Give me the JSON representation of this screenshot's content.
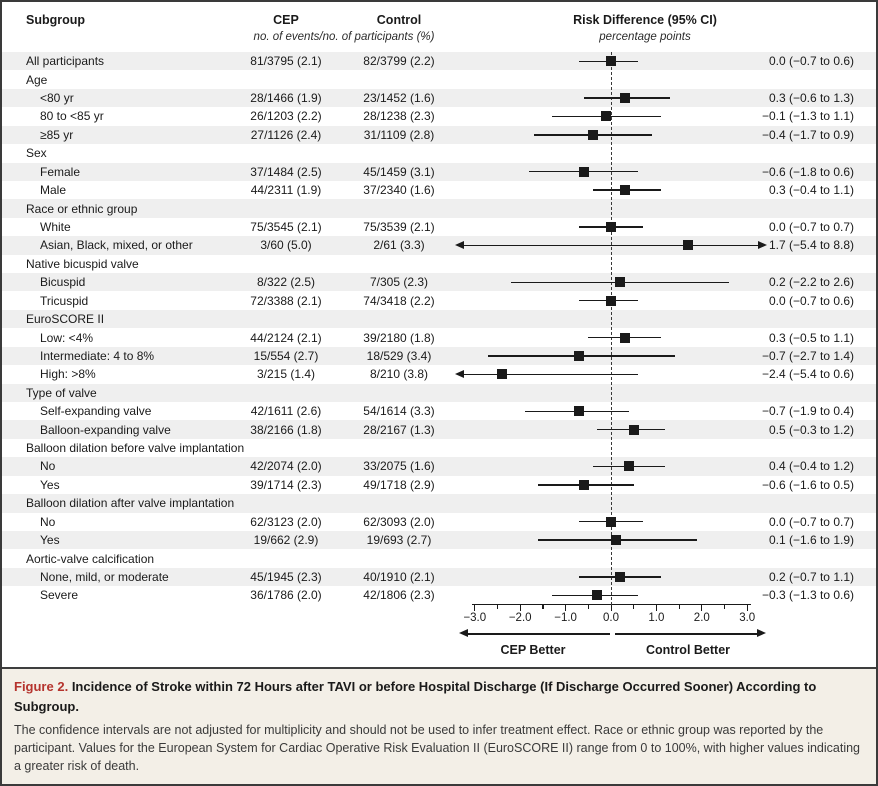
{
  "figure": {
    "columns": {
      "subgroup": "Subgroup",
      "cep": "CEP",
      "control": "Control",
      "events_note": "no. of events/no. of participants (%)",
      "risk_difference": "Risk Difference (95% CI)",
      "risk_difference_note": "percentage points"
    },
    "footer_axis": {
      "left_label": "CEP Better",
      "right_label": "Control Better"
    },
    "caption": {
      "label": "Figure 2.",
      "title": "Incidence of Stroke within 72 Hours after TAVI or before Hospital Discharge (If Discharge Occurred Sooner) According to Subgroup.",
      "body": "The confidence intervals are not adjusted for multiplicity and should not be used to infer treatment effect. Race or ethnic group was reported by the participant. Values for the European System for Cardiac Operative Risk Evaluation II (EuroSCORE II) range from 0 to 100%, with higher values indicating a greater risk of death."
    },
    "colors": {
      "figure_label_red": "#b5332d",
      "band_gray": "#efefef",
      "ink": "#1a1a1a",
      "caption_bg": "#f3efe7",
      "border": "#3e3e3e"
    }
  },
  "chart_data": {
    "type": "forest",
    "x_unit": "percentage points",
    "xlim": [
      -3.0,
      3.0
    ],
    "x_major_ticks": [
      -3.0,
      -2.0,
      -1.0,
      0.0,
      1.0,
      2.0,
      3.0
    ],
    "x_tick_labels": [
      "−3.0",
      "−2.0",
      "−1.0",
      "0.0",
      "1.0",
      "2.0",
      "3.0"
    ],
    "x_minor_step": 0.5,
    "zero_line": 0.0,
    "rows": [
      {
        "label": "All participants",
        "cep": "81/3795 (2.1)",
        "control": "82/3799 (2.2)",
        "estimate": 0.0,
        "ci": [
          -0.7,
          0.6
        ],
        "rd_text": "0.0 (−0.7 to 0.6)"
      },
      {
        "label": "Age",
        "group_header": true
      },
      {
        "label": "<80 yr",
        "indent": true,
        "cep": "28/1466 (1.9)",
        "control": "23/1452 (1.6)",
        "estimate": 0.3,
        "ci": [
          -0.6,
          1.3
        ],
        "rd_text": "0.3 (−0.6 to 1.3)"
      },
      {
        "label": "80 to <85 yr",
        "indent": true,
        "cep": "26/1203 (2.2)",
        "control": "28/1238 (2.3)",
        "estimate": -0.1,
        "ci": [
          -1.3,
          1.1
        ],
        "rd_text": "−0.1 (−1.3 to 1.1)"
      },
      {
        "label": "≥85 yr",
        "indent": true,
        "cep": "27/1126 (2.4)",
        "control": "31/1109 (2.8)",
        "estimate": -0.4,
        "ci": [
          -1.7,
          0.9
        ],
        "rd_text": "−0.4 (−1.7 to 0.9)"
      },
      {
        "label": "Sex",
        "group_header": true
      },
      {
        "label": "Female",
        "indent": true,
        "cep": "37/1484 (2.5)",
        "control": "45/1459 (3.1)",
        "estimate": -0.6,
        "ci": [
          -1.8,
          0.6
        ],
        "rd_text": "−0.6 (−1.8 to 0.6)"
      },
      {
        "label": "Male",
        "indent": true,
        "cep": "44/2311 (1.9)",
        "control": "37/2340 (1.6)",
        "estimate": 0.3,
        "ci": [
          -0.4,
          1.1
        ],
        "rd_text": "0.3 (−0.4 to 1.1)"
      },
      {
        "label": "Race or ethnic group",
        "group_header": true
      },
      {
        "label": "White",
        "indent": true,
        "cep": "75/3545 (2.1)",
        "control": "75/3539 (2.1)",
        "estimate": 0.0,
        "ci": [
          -0.7,
          0.7
        ],
        "rd_text": "0.0 (−0.7 to 0.7)"
      },
      {
        "label": "Asian, Black, mixed, or other",
        "indent": true,
        "cep": "3/60 (5.0)",
        "control": "2/61 (3.3)",
        "estimate": 1.7,
        "ci": [
          -5.4,
          8.8
        ],
        "rd_text": "1.7 (−5.4 to 8.8)",
        "clip_left": true,
        "clip_right": true
      },
      {
        "label": "Native bicuspid valve",
        "group_header": true
      },
      {
        "label": "Bicuspid",
        "indent": true,
        "cep": "8/322 (2.5)",
        "control": "7/305 (2.3)",
        "estimate": 0.2,
        "ci": [
          -2.2,
          2.6
        ],
        "rd_text": "0.2 (−2.2 to 2.6)"
      },
      {
        "label": "Tricuspid",
        "indent": true,
        "cep": "72/3388 (2.1)",
        "control": "74/3418 (2.2)",
        "estimate": 0.0,
        "ci": [
          -0.7,
          0.6
        ],
        "rd_text": "0.0 (−0.7 to 0.6)"
      },
      {
        "label": "EuroSCORE II",
        "group_header": true
      },
      {
        "label": "Low: <4%",
        "indent": true,
        "cep": "44/2124 (2.1)",
        "control": "39/2180 (1.8)",
        "estimate": 0.3,
        "ci": [
          -0.5,
          1.1
        ],
        "rd_text": "0.3 (−0.5 to 1.1)"
      },
      {
        "label": "Intermediate: 4 to 8%",
        "indent": true,
        "cep": "15/554 (2.7)",
        "control": "18/529 (3.4)",
        "estimate": -0.7,
        "ci": [
          -2.7,
          1.4
        ],
        "rd_text": "−0.7 (−2.7 to 1.4)"
      },
      {
        "label": "High: >8%",
        "indent": true,
        "cep": "3/215 (1.4)",
        "control": "8/210 (3.8)",
        "estimate": -2.4,
        "ci": [
          -5.4,
          0.6
        ],
        "rd_text": "−2.4 (−5.4 to 0.6)",
        "clip_left": true
      },
      {
        "label": "Type of valve",
        "group_header": true
      },
      {
        "label": "Self-expanding valve",
        "indent": true,
        "cep": "42/1611 (2.6)",
        "control": "54/1614 (3.3)",
        "estimate": -0.7,
        "ci": [
          -1.9,
          0.4
        ],
        "rd_text": "−0.7 (−1.9 to 0.4)"
      },
      {
        "label": "Balloon-expanding valve",
        "indent": true,
        "cep": "38/2166 (1.8)",
        "control": "28/2167 (1.3)",
        "estimate": 0.5,
        "ci": [
          -0.3,
          1.2
        ],
        "rd_text": "0.5 (−0.3 to 1.2)"
      },
      {
        "label": "Balloon dilation before valve implantation",
        "group_header": true
      },
      {
        "label": "No",
        "indent": true,
        "cep": "42/2074 (2.0)",
        "control": "33/2075 (1.6)",
        "estimate": 0.4,
        "ci": [
          -0.4,
          1.2
        ],
        "rd_text": "0.4 (−0.4 to 1.2)"
      },
      {
        "label": "Yes",
        "indent": true,
        "cep": "39/1714 (2.3)",
        "control": "49/1718 (2.9)",
        "estimate": -0.6,
        "ci": [
          -1.6,
          0.5
        ],
        "rd_text": "−0.6 (−1.6 to 0.5)"
      },
      {
        "label": "Balloon dilation after valve implantation",
        "group_header": true
      },
      {
        "label": "No",
        "indent": true,
        "cep": "62/3123 (2.0)",
        "control": "62/3093 (2.0)",
        "estimate": 0.0,
        "ci": [
          -0.7,
          0.7
        ],
        "rd_text": "0.0 (−0.7 to 0.7)"
      },
      {
        "label": "Yes",
        "indent": true,
        "cep": "19/662 (2.9)",
        "control": "19/693 (2.7)",
        "estimate": 0.1,
        "ci": [
          -1.6,
          1.9
        ],
        "rd_text": "0.1 (−1.6 to 1.9)"
      },
      {
        "label": "Aortic-valve calcification",
        "group_header": true
      },
      {
        "label": "None, mild, or moderate",
        "indent": true,
        "cep": "45/1945 (2.3)",
        "control": "40/1910 (2.1)",
        "estimate": 0.2,
        "ci": [
          -0.7,
          1.1
        ],
        "rd_text": "0.2 (−0.7 to 1.1)"
      },
      {
        "label": "Severe",
        "indent": true,
        "cep": "36/1786 (2.0)",
        "control": "42/1806 (2.3)",
        "estimate": -0.3,
        "ci": [
          -1.3,
          0.6
        ],
        "rd_text": "−0.3 (−1.3 to 0.6)"
      }
    ]
  }
}
